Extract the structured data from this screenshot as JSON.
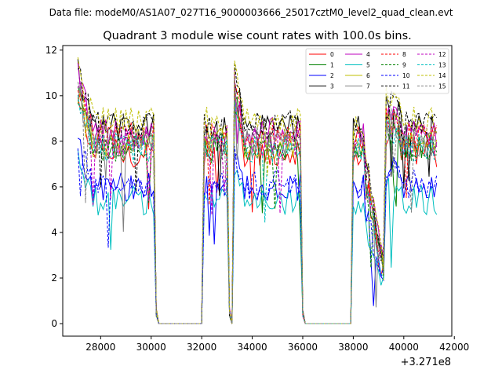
{
  "figure": {
    "suptitle": "Data file: modeM0/AS1A07_027T16_9000003666_25017cztM0_level2_quad_clean.evt"
  },
  "chart_data": {
    "type": "line",
    "title": "Quadrant 3 module wise count rates with 100.0s bins.",
    "xlabel": "",
    "ylabel": "",
    "x_offset_label": "+3.271e8",
    "xlim": [
      26500,
      41900
    ],
    "ylim": [
      -0.55,
      12.2
    ],
    "x_ticks": [
      28000,
      30000,
      32000,
      34000,
      36000,
      38000,
      40000,
      42000
    ],
    "x_tick_labels": [
      "28000",
      "30000",
      "32000",
      "34000",
      "36000",
      "38000",
      "40000",
      "42000"
    ],
    "y_ticks": [
      0,
      2,
      4,
      6,
      8,
      10,
      12
    ],
    "y_tick_labels": [
      "0",
      "2",
      "4",
      "6",
      "8",
      "10",
      "12"
    ],
    "legend_position": "top-right",
    "legend_columns": 4,
    "segments": [
      {
        "start": 27100,
        "end": 30100,
        "drop_end": 30300
      },
      {
        "start": 32050,
        "end": 33050,
        "drop_end": 33150
      },
      {
        "start": 33250,
        "end": 35900,
        "drop_end": 36100
      },
      {
        "start": 38000,
        "end": 41300,
        "drop_end": 41300
      }
    ],
    "series": [
      {
        "name": "0",
        "color": "#ff0000",
        "dash": "solid",
        "level": 7.5
      },
      {
        "name": "1",
        "color": "#008000",
        "dash": "solid",
        "level": 7.8
      },
      {
        "name": "2",
        "color": "#0000ff",
        "dash": "solid",
        "level": 6.0
      },
      {
        "name": "3",
        "color": "#000000",
        "dash": "solid",
        "level": 8.6
      },
      {
        "name": "4",
        "color": "#bf00bf",
        "dash": "solid",
        "level": 8.4
      },
      {
        "name": "5",
        "color": "#00bfbf",
        "dash": "solid",
        "level": 5.4
      },
      {
        "name": "6",
        "color": "#bfbf00",
        "dash": "solid",
        "level": 7.9
      },
      {
        "name": "7",
        "color": "#808080",
        "dash": "solid",
        "level": 7.9
      },
      {
        "name": "8",
        "color": "#ff0000",
        "dash": "dashed",
        "level": 8.2
      },
      {
        "name": "9",
        "color": "#008000",
        "dash": "dashed",
        "level": 7.7
      },
      {
        "name": "10",
        "color": "#0000ff",
        "dash": "dashed",
        "level": 6.1
      },
      {
        "name": "11",
        "color": "#000000",
        "dash": "dashed",
        "level": 8.7
      },
      {
        "name": "12",
        "color": "#bf00bf",
        "dash": "dashed",
        "level": 8.0
      },
      {
        "name": "13",
        "color": "#00bfbf",
        "dash": "dashed",
        "level": 7.7
      },
      {
        "name": "14",
        "color": "#bfbf00",
        "dash": "dashed",
        "level": 8.9
      },
      {
        "name": "15",
        "color": "#808080",
        "dash": "dashed",
        "level": 8.0
      }
    ]
  }
}
